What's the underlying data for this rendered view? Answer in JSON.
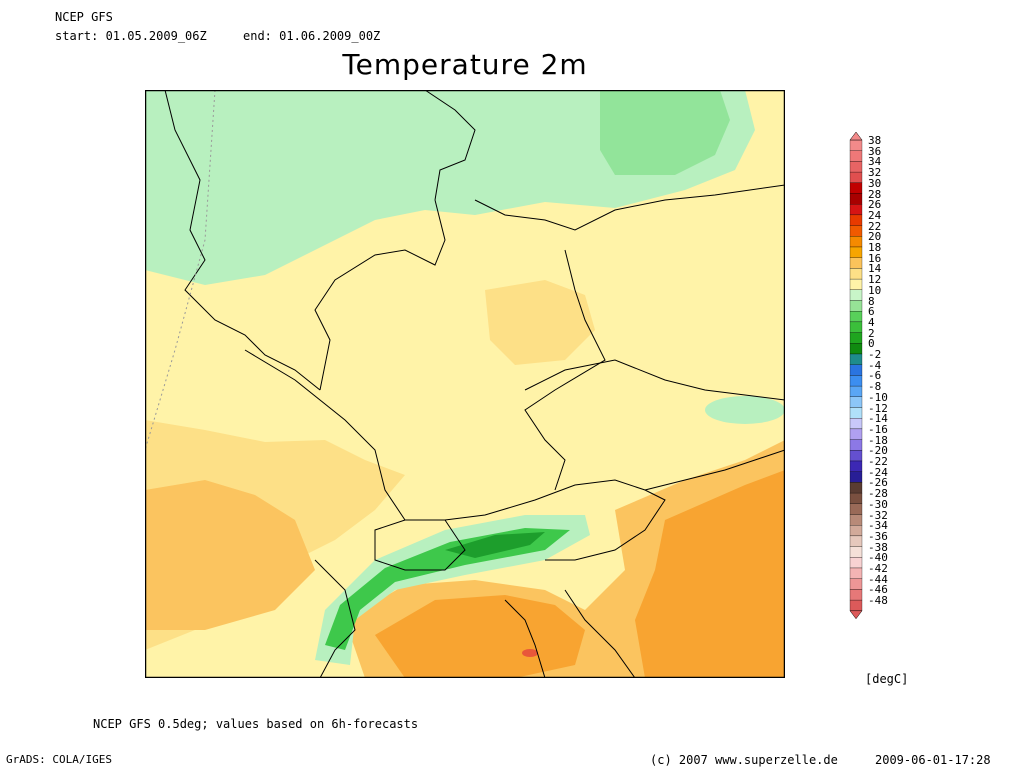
{
  "header": {
    "model": "NCEP GFS",
    "start_label": "start: 01.05.2009_06Z",
    "end_label": "end: 01.06.2009_00Z"
  },
  "title": "Temperature 2m",
  "map": {
    "region": "Central Europe",
    "field": "2m temperature mean",
    "colors": {
      "cold_green": "#92e49a",
      "mild_lightgreen": "#b8f0bf",
      "warm_yellow": "#fff3a8",
      "warmer": "#fde087",
      "orange_light": "#fbc45f",
      "orange": "#f8a431",
      "red_hot": "#e8573a",
      "alpine_green": "#3ec84b",
      "alpine_dark": "#1d9e2c"
    }
  },
  "colorbar": {
    "unit": "[degC]",
    "labels": [
      "38",
      "36",
      "34",
      "32",
      "30",
      "28",
      "26",
      "24",
      "22",
      "20",
      "18",
      "16",
      "14",
      "12",
      "10",
      "8",
      "6",
      "4",
      "2",
      "0",
      "-2",
      "-4",
      "-6",
      "-8",
      "-10",
      "-12",
      "-14",
      "-16",
      "-18",
      "-20",
      "-22",
      "-24",
      "-26",
      "-28",
      "-30",
      "-32",
      "-34",
      "-36",
      "-38",
      "-40",
      "-42",
      "-44",
      "-46",
      "-48"
    ],
    "colors": [
      "#f28a8a",
      "#ee7878",
      "#e86464",
      "#e04f4f",
      "#c00000",
      "#a80000",
      "#d61414",
      "#e83a00",
      "#f05a00",
      "#f58a00",
      "#f7a500",
      "#fbc35b",
      "#fde087",
      "#fff3a8",
      "#c8f5c8",
      "#96e296",
      "#58d05a",
      "#3bbf3b",
      "#1fa51f",
      "#108a10",
      "#1e8c8c",
      "#2a74e0",
      "#3c8ef0",
      "#5aa6f5",
      "#8cc6f8",
      "#b0e0fa",
      "#c8c8fa",
      "#b0a0f0",
      "#8c78e6",
      "#6450d0",
      "#3c28b4",
      "#281e96",
      "#5a3c32",
      "#7a5040",
      "#9a6a58",
      "#b88a78",
      "#d2aa9a",
      "#e6c8bc",
      "#f5e0d8",
      "#f8d2d2",
      "#f4b4b4",
      "#ee9696",
      "#e67878",
      "#dc5a5a"
    ]
  },
  "footer": {
    "note": "NCEP GFS 0.5deg; values based on 6h-forecasts",
    "software": "GrADS: COLA/IGES",
    "copyright": "(c) 2007 www.superzelle.de",
    "timestamp": "2009-06-01-17:28"
  }
}
